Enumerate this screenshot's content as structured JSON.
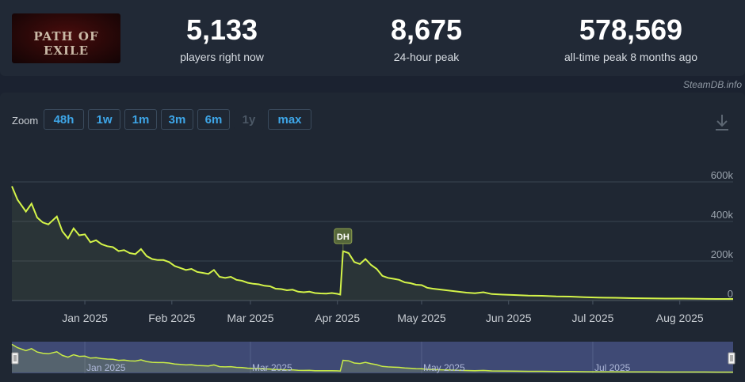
{
  "header": {
    "logo_text": "PATH OF EXILE",
    "stats": [
      {
        "value": "5,133",
        "label": "players right now"
      },
      {
        "value": "8,675",
        "label": "24-hour peak"
      },
      {
        "value": "578,569",
        "label": "all-time peak 8 months ago"
      }
    ],
    "credit": "SteamDB.info"
  },
  "zoom": {
    "label": "Zoom",
    "buttons": [
      {
        "label": "48h",
        "enabled": true
      },
      {
        "label": "1w",
        "enabled": true
      },
      {
        "label": "1m",
        "enabled": true
      },
      {
        "label": "3m",
        "enabled": true
      },
      {
        "label": "6m",
        "enabled": true
      },
      {
        "label": "1y",
        "enabled": false
      },
      {
        "label": "max",
        "enabled": true
      }
    ]
  },
  "chart_data": {
    "type": "line",
    "title": "",
    "xlabel": "",
    "ylabel": "",
    "y_tick_labels": [
      "0",
      "200k",
      "400k",
      "600k"
    ],
    "y_ticks": [
      0,
      200000,
      400000,
      600000
    ],
    "ylim": [
      0,
      600000
    ],
    "x_tick_labels": [
      "Jan 2025",
      "Feb 2025",
      "Mar 2025",
      "Apr 2025",
      "May 2025",
      "Jun 2025",
      "Jul 2025",
      "Aug 2025"
    ],
    "x_tick_dates": [
      "2025-01-01",
      "2025-02-01",
      "2025-03-01",
      "2025-04-01",
      "2025-05-01",
      "2025-06-01",
      "2025-07-01",
      "2025-08-01"
    ],
    "x_range": [
      "2024-12-06",
      "2025-08-20"
    ],
    "line_color": "#d4f449",
    "grid": true,
    "annotation": {
      "label": "DH",
      "date": "2025-04-03"
    },
    "series": [
      {
        "points": [
          [
            "2024-12-06",
            578000
          ],
          [
            "2024-12-08",
            510000
          ],
          [
            "2024-12-11",
            450000
          ],
          [
            "2024-12-13",
            490000
          ],
          [
            "2024-12-15",
            420000
          ],
          [
            "2024-12-17",
            395000
          ],
          [
            "2024-12-19",
            385000
          ],
          [
            "2024-12-22",
            425000
          ],
          [
            "2024-12-24",
            350000
          ],
          [
            "2024-12-26",
            315000
          ],
          [
            "2024-12-28",
            365000
          ],
          [
            "2024-12-30",
            330000
          ],
          [
            "2025-01-01",
            335000
          ],
          [
            "2025-01-03",
            295000
          ],
          [
            "2025-01-05",
            305000
          ],
          [
            "2025-01-07",
            285000
          ],
          [
            "2025-01-09",
            275000
          ],
          [
            "2025-01-11",
            270000
          ],
          [
            "2025-01-13",
            250000
          ],
          [
            "2025-01-15",
            255000
          ],
          [
            "2025-01-17",
            240000
          ],
          [
            "2025-01-19",
            235000
          ],
          [
            "2025-01-21",
            260000
          ],
          [
            "2025-01-23",
            225000
          ],
          [
            "2025-01-25",
            210000
          ],
          [
            "2025-01-27",
            205000
          ],
          [
            "2025-01-29",
            205000
          ],
          [
            "2025-01-31",
            195000
          ],
          [
            "2025-02-02",
            175000
          ],
          [
            "2025-02-04",
            165000
          ],
          [
            "2025-02-06",
            155000
          ],
          [
            "2025-02-08",
            160000
          ],
          [
            "2025-02-10",
            145000
          ],
          [
            "2025-02-12",
            140000
          ],
          [
            "2025-02-14",
            135000
          ],
          [
            "2025-02-16",
            155000
          ],
          [
            "2025-02-18",
            120000
          ],
          [
            "2025-02-20",
            115000
          ],
          [
            "2025-02-22",
            120000
          ],
          [
            "2025-02-24",
            105000
          ],
          [
            "2025-02-26",
            100000
          ],
          [
            "2025-02-28",
            90000
          ],
          [
            "2025-03-02",
            85000
          ],
          [
            "2025-03-04",
            82000
          ],
          [
            "2025-03-06",
            75000
          ],
          [
            "2025-03-08",
            72000
          ],
          [
            "2025-03-10",
            60000
          ],
          [
            "2025-03-12",
            58000
          ],
          [
            "2025-03-14",
            52000
          ],
          [
            "2025-03-16",
            55000
          ],
          [
            "2025-03-18",
            45000
          ],
          [
            "2025-03-20",
            42000
          ],
          [
            "2025-03-22",
            45000
          ],
          [
            "2025-03-24",
            38000
          ],
          [
            "2025-03-26",
            36000
          ],
          [
            "2025-03-28",
            35000
          ],
          [
            "2025-03-30",
            38000
          ],
          [
            "2025-04-01",
            34000
          ],
          [
            "2025-04-02",
            30000
          ],
          [
            "2025-04-03",
            250000
          ],
          [
            "2025-04-05",
            240000
          ],
          [
            "2025-04-07",
            195000
          ],
          [
            "2025-04-09",
            185000
          ],
          [
            "2025-04-11",
            210000
          ],
          [
            "2025-04-13",
            180000
          ],
          [
            "2025-04-15",
            160000
          ],
          [
            "2025-04-17",
            125000
          ],
          [
            "2025-04-19",
            115000
          ],
          [
            "2025-04-21",
            110000
          ],
          [
            "2025-04-23",
            105000
          ],
          [
            "2025-04-25",
            92000
          ],
          [
            "2025-04-27",
            88000
          ],
          [
            "2025-04-29",
            80000
          ],
          [
            "2025-05-01",
            78000
          ],
          [
            "2025-05-03",
            65000
          ],
          [
            "2025-05-05",
            60000
          ],
          [
            "2025-05-08",
            55000
          ],
          [
            "2025-05-11",
            50000
          ],
          [
            "2025-05-14",
            45000
          ],
          [
            "2025-05-17",
            40000
          ],
          [
            "2025-05-20",
            37000
          ],
          [
            "2025-05-23",
            42000
          ],
          [
            "2025-05-26",
            33000
          ],
          [
            "2025-05-30",
            30000
          ],
          [
            "2025-06-03",
            28000
          ],
          [
            "2025-06-08",
            25000
          ],
          [
            "2025-06-13",
            24000
          ],
          [
            "2025-06-18",
            21000
          ],
          [
            "2025-06-23",
            20000
          ],
          [
            "2025-06-28",
            17000
          ],
          [
            "2025-07-03",
            15000
          ],
          [
            "2025-07-09",
            14000
          ],
          [
            "2025-07-15",
            12000
          ],
          [
            "2025-07-21",
            11000
          ],
          [
            "2025-07-27",
            10000
          ],
          [
            "2025-08-02",
            10000
          ],
          [
            "2025-08-08",
            9000
          ],
          [
            "2025-08-14",
            8000
          ],
          [
            "2025-08-20",
            8000
          ]
        ]
      }
    ],
    "navigator": {
      "x_tick_labels": [
        "Jan 2025",
        "Mar 2025",
        "May 2025",
        "Jul 2025"
      ],
      "x_tick_dates": [
        "2025-01-01",
        "2025-03-01",
        "2025-05-01",
        "2025-07-01"
      ],
      "x_range": [
        "2024-12-06",
        "2025-08-20"
      ]
    }
  }
}
